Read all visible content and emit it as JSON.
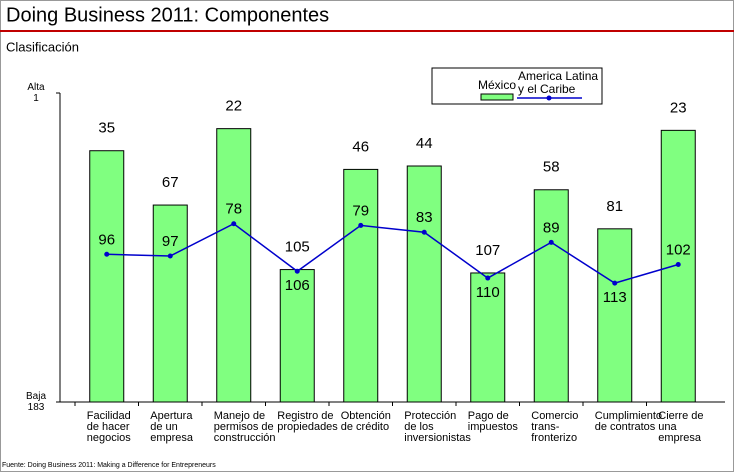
{
  "chart_data": {
    "type": "bar-line",
    "title": "Doing Business 2011: Componentes",
    "subtitle": "Clasificación",
    "source": "Fuente: Doing Business 2011: Making a Difference for Entrepreneurs",
    "categories": [
      "Facilidad\nde hacer\nnegocios",
      "Apertura\nde un\nempresa",
      "Manejo de\npermisos de\nconstrucción",
      "Registro de\npropiedades",
      "Obtención\nde crédito",
      "Protección\nde los\ninversionistas",
      "Pago de\nimpuestos",
      "Comercio\ntrans-\nfronterizo",
      "Cumplimiento\nde contratos",
      "Cierre de\nuna\nempresa"
    ],
    "series": [
      {
        "name": "México",
        "color": "#80ff80",
        "kind": "bar",
        "values": [
          35,
          67,
          22,
          105,
          46,
          44,
          107,
          58,
          81,
          23
        ]
      },
      {
        "name": "America Latina\ny el Caribe",
        "color": "#0000cc",
        "kind": "line",
        "values": [
          96,
          97,
          78,
          106,
          79,
          83,
          110,
          89,
          113,
          102
        ]
      }
    ],
    "ylim": [
      183,
      1
    ],
    "yticks": [
      {
        "value": 1,
        "label": "Alta\n1"
      },
      {
        "value": 183,
        "label": "Baja\n183"
      }
    ]
  }
}
